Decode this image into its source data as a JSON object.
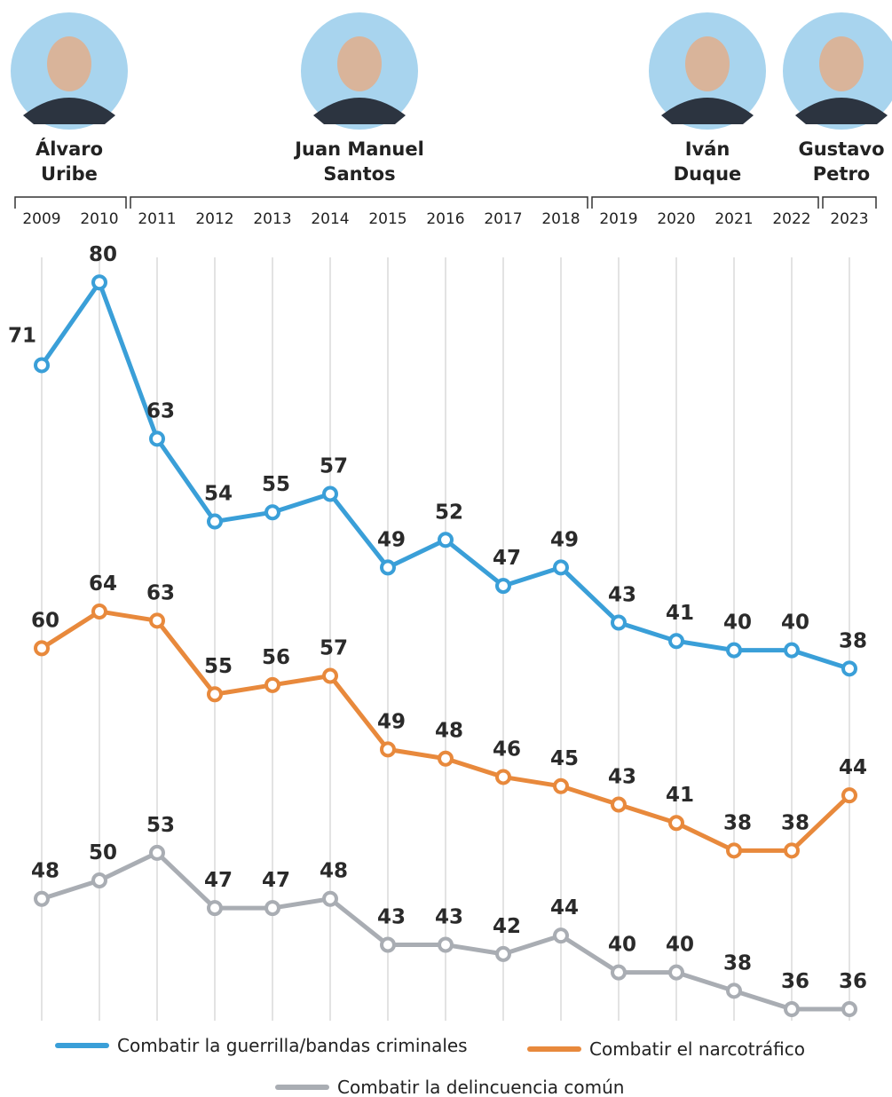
{
  "chart_data": {
    "type": "line",
    "categories": [
      "2009",
      "2010",
      "2011",
      "2012",
      "2013",
      "2014",
      "2015",
      "2016",
      "2017",
      "2018",
      "2019",
      "2020",
      "2021",
      "2022",
      "2023"
    ],
    "presidents": [
      {
        "name_lines": [
          "Álvaro",
          "Uribe"
        ],
        "from": "2009",
        "to": "2010"
      },
      {
        "name_lines": [
          "Juan Manuel",
          "Santos"
        ],
        "from": "2011",
        "to": "2018"
      },
      {
        "name_lines": [
          "Iván",
          "Duque"
        ],
        "from": "2019",
        "to": "2022"
      },
      {
        "name_lines": [
          "Gustavo",
          "Petro"
        ],
        "from": "2023",
        "to": "2023"
      }
    ],
    "series": [
      {
        "name": "Combatir la guerrilla/bandas criminales",
        "color": "#3a9fd8",
        "values": [
          71,
          80,
          63,
          54,
          55,
          57,
          49,
          52,
          47,
          49,
          43,
          41,
          40,
          40,
          38
        ]
      },
      {
        "name": "Combatir el narcotráfico",
        "color": "#e8893c",
        "values": [
          60,
          64,
          63,
          55,
          56,
          57,
          49,
          48,
          46,
          45,
          43,
          41,
          38,
          38,
          44
        ]
      },
      {
        "name": "Combatir la delincuencia común",
        "color": "#a9adb3",
        "values": [
          48,
          50,
          53,
          47,
          47,
          48,
          43,
          43,
          42,
          44,
          40,
          40,
          38,
          36,
          36
        ]
      }
    ],
    "grid": true
  }
}
